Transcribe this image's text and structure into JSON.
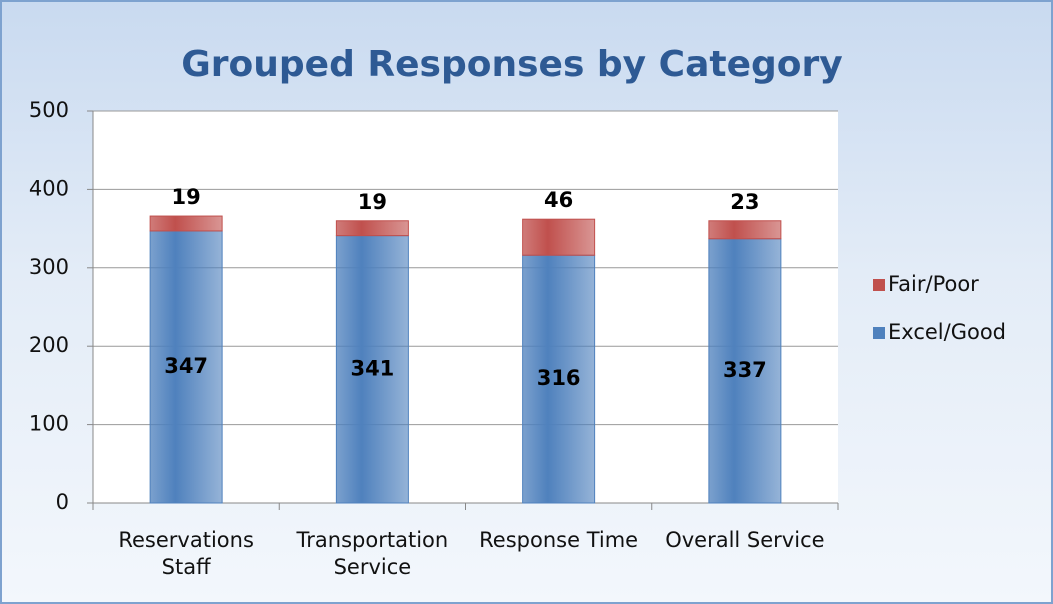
{
  "chart_data": {
    "type": "stacked_bar",
    "title": "Grouped Responses by Category",
    "categories": [
      "Reservations Staff",
      "Transportation Service",
      "Response Time",
      "Overall Service"
    ],
    "series": [
      {
        "name": "Excel/Good",
        "color": "#4f81bd",
        "values": [
          347,
          341,
          316,
          337
        ]
      },
      {
        "name": "Fair/Poor",
        "color": "#c0504d",
        "values": [
          19,
          19,
          46,
          23
        ]
      }
    ],
    "ylim": [
      0,
      500
    ],
    "yticks": [
      0,
      100,
      200,
      300,
      400,
      500
    ],
    "grid": true,
    "legend": "right"
  }
}
